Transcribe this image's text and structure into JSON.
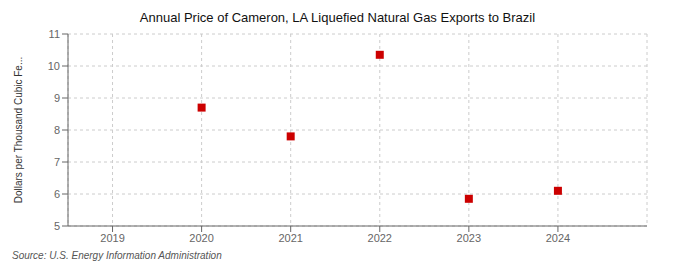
{
  "chart_data": {
    "type": "scatter",
    "title": "Annual Price of Cameron, LA Liquefied Natural Gas Exports to Brazil",
    "ylabel": "Dollars per Thousand Cubic Fe...",
    "annotation": "Source: U.S. Energy Information Administration",
    "x": [
      2020,
      2021,
      2022,
      2023,
      2024
    ],
    "values": [
      8.7,
      7.8,
      10.35,
      5.85,
      6.1
    ],
    "xlim": [
      2018.5,
      2025.0
    ],
    "ylim": [
      5,
      11
    ],
    "xticks": [
      2019,
      2020,
      2021,
      2022,
      2023,
      2024
    ],
    "yticks": [
      5,
      6,
      7,
      8,
      9,
      10,
      11
    ],
    "color": "#cc0000",
    "marker": "square",
    "grid": true
  }
}
